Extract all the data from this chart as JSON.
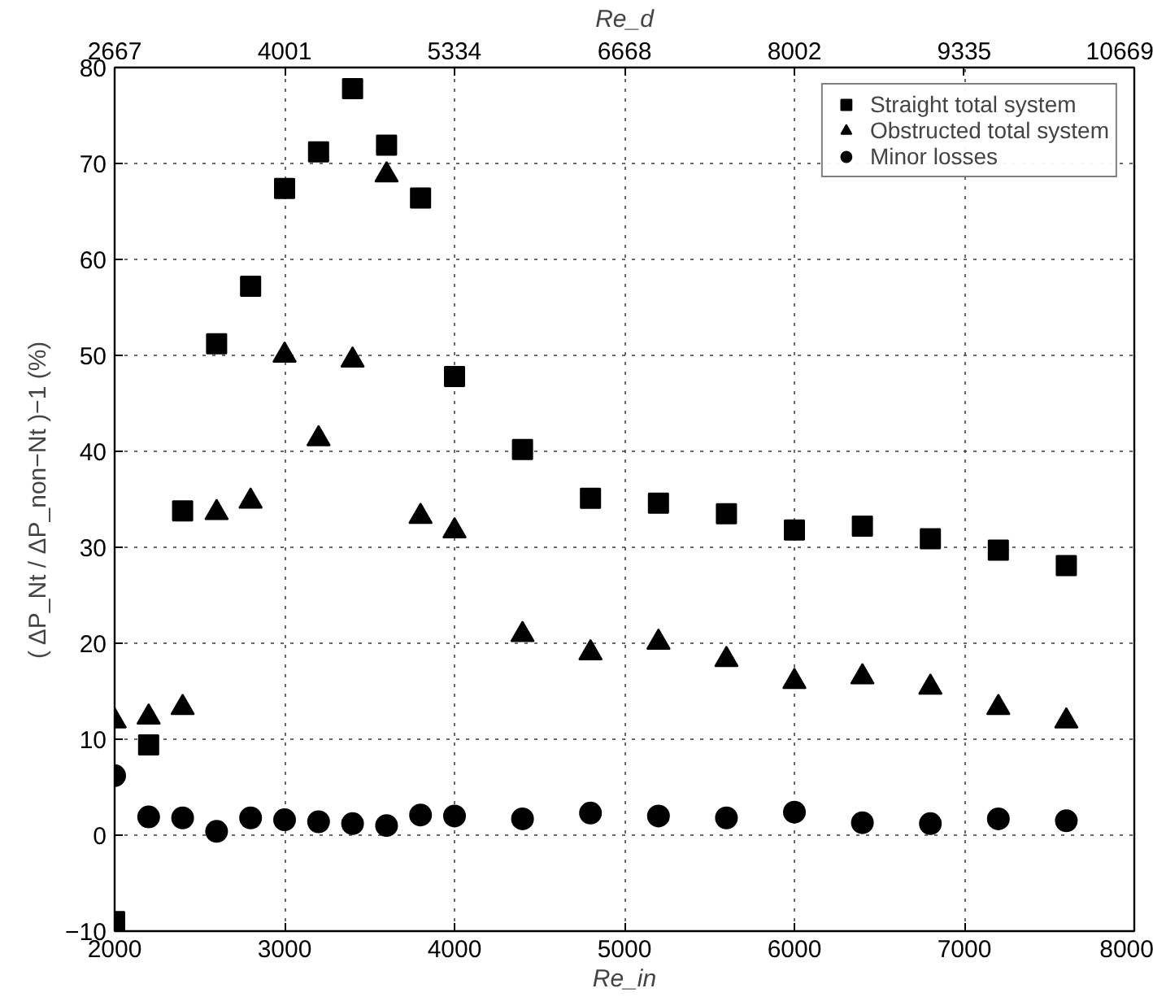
{
  "chart_data": {
    "type": "scatter",
    "xlabel": "Re_in",
    "x2label": "Re_d",
    "ylabel": "( ΔP_Nt / ΔP_non−Nt )−1 (%)",
    "x": [
      2000,
      2200,
      2400,
      2600,
      2800,
      3000,
      3200,
      3400,
      3600,
      3800,
      4000,
      4400,
      4800,
      5200,
      5600,
      6000,
      6400,
      6800,
      7200,
      7600
    ],
    "series": [
      {
        "name": "Straight total system",
        "color": "#000000",
        "marker": "square",
        "values": [
          -9,
          9.4,
          33.8,
          51.2,
          57.2,
          67.4,
          71.2,
          77.8,
          71.9,
          66.4,
          47.8,
          40.2,
          35.1,
          34.6,
          33.5,
          31.8,
          32.2,
          30.9,
          29.7,
          28.1
        ]
      },
      {
        "name": "Obstructed total system",
        "color": "#000000",
        "marker": "triangle",
        "values": [
          11.9,
          12.3,
          13.3,
          33.6,
          34.8,
          50.0,
          41.3,
          49.5,
          68.8,
          33.2,
          31.7,
          20.9,
          19.0,
          20.1,
          18.3,
          16.0,
          16.5,
          15.4,
          13.3,
          11.9
        ]
      },
      {
        "name": "Minor losses",
        "color": "#000000",
        "marker": "circle",
        "values": [
          6.2,
          1.9,
          1.8,
          0.4,
          1.8,
          1.6,
          1.4,
          1.2,
          1.0,
          2.1,
          2.0,
          1.7,
          2.3,
          2.0,
          1.8,
          2.4,
          1.3,
          1.2,
          1.7,
          1.5
        ]
      }
    ],
    "xlim": [
      2000,
      8000
    ],
    "xticks": [
      2000,
      3000,
      4000,
      5000,
      6000,
      7000,
      8000
    ],
    "x2lim": [
      2667,
      10669
    ],
    "x2ticks": [
      2667,
      4001,
      5334,
      6668,
      8002,
      9335,
      10669
    ],
    "ylim": [
      -10,
      80
    ],
    "yticks": [
      -10,
      0,
      10,
      20,
      30,
      40,
      50,
      60,
      70,
      80
    ],
    "grid": true,
    "legend": "top right",
    "line_style": "dotted"
  }
}
